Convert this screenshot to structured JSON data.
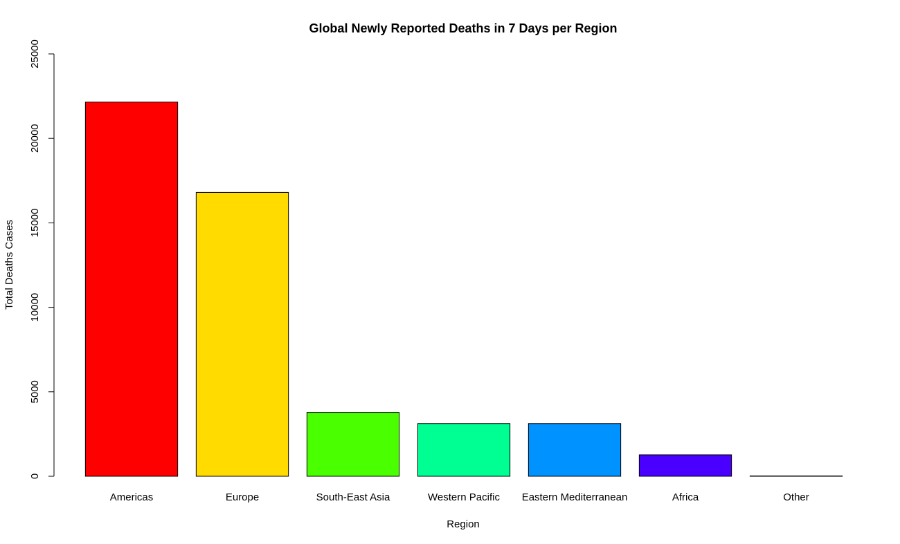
{
  "chart_data": {
    "type": "bar",
    "title": "Global Newly Reported Deaths in 7 Days per Region",
    "xlabel": "Region",
    "ylabel": "Total Deaths Cases",
    "categories": [
      "Americas",
      "Europe",
      "South-East Asia",
      "Western Pacific",
      "Eastern Mediterranean",
      "Africa",
      "Other"
    ],
    "values": [
      22150,
      16800,
      3780,
      3120,
      3120,
      1270,
      20
    ],
    "colors": [
      "#FF0000",
      "#FFDB00",
      "#49FF00",
      "#00FF92",
      "#0092FF",
      "#4900FF",
      "#FF00DB"
    ],
    "ylim": [
      0,
      25000
    ],
    "yticks": [
      0,
      5000,
      10000,
      15000,
      20000,
      25000
    ],
    "grid": false,
    "legend": "none"
  }
}
